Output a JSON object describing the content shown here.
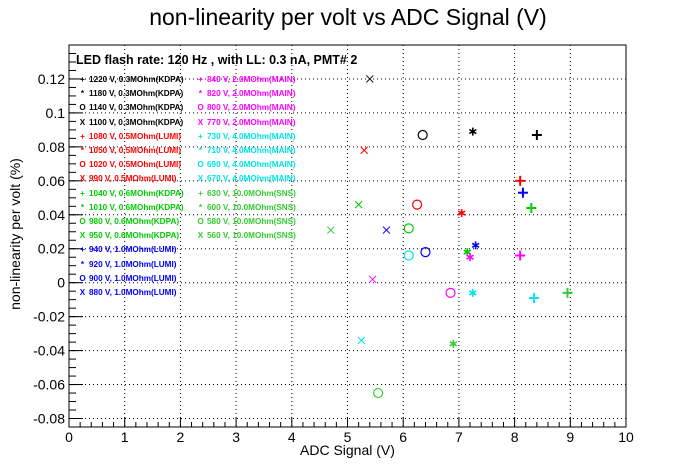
{
  "chart_data": {
    "type": "scatter",
    "title": "non-linearity per volt vs ADC Signal (V)",
    "subtitle": "LED flash rate: 120 Hz , with LL: 0.3 nA, PMT# 2",
    "xlabel": "ADC Signal (V)",
    "ylabel": "non-linearity per volt (%)",
    "xlim": [
      0,
      10
    ],
    "ylim": [
      -0.085,
      0.14
    ],
    "xticks": [
      "0",
      "1",
      "2",
      "3",
      "4",
      "5",
      "6",
      "7",
      "8",
      "9",
      "10"
    ],
    "yticks": [
      "-0.08",
      "-0.06",
      "-0.04",
      "-0.02",
      "0",
      "0.02",
      "0.04",
      "0.06",
      "0.08",
      "0.1",
      "0.12"
    ],
    "ytick_values": [
      -0.08,
      -0.06,
      -0.04,
      -0.02,
      0,
      0.02,
      0.04,
      0.06,
      0.08,
      0.1,
      0.12
    ],
    "grid": true,
    "legend_position": "top-left",
    "series": [
      {
        "name": "1220 V, 0.3MOhm(KDPA)",
        "marker": "plus",
        "color": "#000000",
        "points": [
          [
            8.4,
            0.087
          ]
        ]
      },
      {
        "name": "1180 V, 0.3MOhm(KDPA)",
        "marker": "star",
        "color": "#000000",
        "points": [
          [
            7.25,
            0.089
          ]
        ]
      },
      {
        "name": "1140 V, 0.3MOhm(KDPA)",
        "marker": "circle",
        "color": "#000000",
        "points": [
          [
            6.35,
            0.087
          ]
        ]
      },
      {
        "name": "1100 V, 0.3MOhm(KDPA)",
        "marker": "x",
        "color": "#000000",
        "points": [
          [
            5.4,
            0.12
          ]
        ]
      },
      {
        "name": "1080 V, 0.5MOhm(LUMI)",
        "marker": "plus",
        "color": "#ff0000",
        "points": [
          [
            8.1,
            0.06
          ]
        ]
      },
      {
        "name": "1050 V, 0.5MOhm(LUMI)",
        "marker": "star",
        "color": "#ff0000",
        "points": [
          [
            7.05,
            0.041
          ]
        ]
      },
      {
        "name": "1020 V, 0.5MOhm(LUMI)",
        "marker": "circle",
        "color": "#ff0000",
        "points": [
          [
            6.25,
            0.046
          ]
        ]
      },
      {
        "name": "990 V, 0.5MOhm(LUMI)",
        "marker": "x",
        "color": "#ff0000",
        "points": [
          [
            5.3,
            0.078
          ]
        ]
      },
      {
        "name": "1040 V, 0.6MOhm(KDPA)",
        "marker": "plus",
        "color": "#00cc00",
        "points": [
          [
            8.3,
            0.044
          ]
        ]
      },
      {
        "name": "1010 V, 0.6MOhm(KDPA)",
        "marker": "star",
        "color": "#00cc00",
        "points": [
          [
            7.15,
            0.018
          ]
        ]
      },
      {
        "name": "980 V, 0.6MOhm(KDPA)",
        "marker": "circle",
        "color": "#00cc00",
        "points": [
          [
            6.1,
            0.032
          ]
        ]
      },
      {
        "name": "950 V, 0.6MOhm(KDPA)",
        "marker": "x",
        "color": "#00cc00",
        "points": [
          [
            5.2,
            0.046
          ]
        ]
      },
      {
        "name": "940 V, 1.0MOhm(LUMI)",
        "marker": "plus",
        "color": "#0000ff",
        "points": [
          [
            8.15,
            0.053
          ]
        ]
      },
      {
        "name": "920 V, 1.0MOhm(LUMI)",
        "marker": "star",
        "color": "#0000ff",
        "points": [
          [
            7.3,
            0.022
          ]
        ]
      },
      {
        "name": "900 V, 1.0MOhm(LUMI)",
        "marker": "circle",
        "color": "#0000ff",
        "points": [
          [
            6.4,
            0.018
          ]
        ]
      },
      {
        "name": "880 V, 1.0MOhm(LUMI)",
        "marker": "x",
        "color": "#0000ff",
        "points": [
          [
            5.7,
            0.031
          ]
        ]
      },
      {
        "name": "840 V, 2.0MOhm(MAIN)",
        "marker": "plus",
        "color": "#ff00ff",
        "points": [
          [
            8.1,
            0.016
          ]
        ]
      },
      {
        "name": "820 V, 2.0MOhm(MAIN)",
        "marker": "star",
        "color": "#ff00ff",
        "points": [
          [
            7.2,
            0.015
          ]
        ]
      },
      {
        "name": "800 V, 2.0MOhm(MAIN)",
        "marker": "circle",
        "color": "#ff00ff",
        "points": [
          [
            6.85,
            -0.006
          ]
        ]
      },
      {
        "name": "770 V, 2.0MOhm(MAIN)",
        "marker": "x",
        "color": "#ff00ff",
        "points": [
          [
            5.45,
            0.002
          ]
        ]
      },
      {
        "name": "730 V, 4.0MOhm(MAIN)",
        "marker": "plus",
        "color": "#00e5e5",
        "points": [
          [
            8.35,
            -0.009
          ]
        ]
      },
      {
        "name": "710 V, 4.0MOhm(MAIN)",
        "marker": "star",
        "color": "#00e5e5",
        "points": [
          [
            7.25,
            -0.006
          ]
        ]
      },
      {
        "name": "690 V, 4.0MOhm(MAIN)",
        "marker": "circle",
        "color": "#00e5e5",
        "points": [
          [
            6.1,
            0.016
          ]
        ]
      },
      {
        "name": "670 V, 4.0MOhm(MAIN)",
        "marker": "x",
        "color": "#00e5e5",
        "points": [
          [
            5.25,
            -0.034
          ]
        ]
      },
      {
        "name": "630 V, 10.0MOhm(SNS)",
        "marker": "plus",
        "color": "#33cc33",
        "points": [
          [
            8.95,
            -0.006
          ]
        ]
      },
      {
        "name": "600 V, 10.0MOhm(SNS)",
        "marker": "star",
        "color": "#33cc33",
        "points": [
          [
            6.9,
            -0.036
          ]
        ]
      },
      {
        "name": "580 V, 10.0MOhm(SNS)",
        "marker": "circle",
        "color": "#33cc33",
        "points": [
          [
            5.55,
            -0.065
          ]
        ]
      },
      {
        "name": "560 V, 10.0MOhm(SNS)",
        "marker": "x",
        "color": "#33cc33",
        "points": [
          [
            4.7,
            0.031
          ]
        ]
      }
    ],
    "legend_columns": [
      [
        {
          "symbol": "+",
          "label": "1220 V, 0.3MOhm(KDPA)",
          "color": "#000000"
        },
        {
          "symbol": "*",
          "label": "1180 V, 0.3MOhm(KDPA)",
          "color": "#000000"
        },
        {
          "symbol": "O",
          "label": "1140 V, 0.3MOhm(KDPA)",
          "color": "#000000"
        },
        {
          "symbol": "X",
          "label": "1100 V, 0.3MOhm(KDPA)",
          "color": "#000000"
        },
        {
          "symbol": "+",
          "label": "1080 V, 0.5MOhm(LUMI)",
          "color": "#ff0000"
        },
        {
          "symbol": "*",
          "label": "1050 V, 0.5MOhm(LUMI)",
          "color": "#ff0000"
        },
        {
          "symbol": "O",
          "label": "1020 V, 0.5MOhm(LUMI)",
          "color": "#ff0000"
        },
        {
          "symbol": "X",
          "label": "990 V, 0.5MOhm(LUMI)",
          "color": "#ff0000"
        },
        {
          "symbol": "+",
          "label": "1040 V, 0.6MOhm(KDPA)",
          "color": "#00cc00"
        },
        {
          "symbol": "*",
          "label": "1010 V, 0.6MOhm(KDPA)",
          "color": "#00cc00"
        },
        {
          "symbol": "O",
          "label": "980 V, 0.6MOhm(KDPA)",
          "color": "#00cc00"
        },
        {
          "symbol": "X",
          "label": "950 V, 0.6MOhm(KDPA)",
          "color": "#00cc00"
        },
        {
          "symbol": "+",
          "label": "940 V, 1.0MOhm(LUMI)",
          "color": "#0000ff"
        },
        {
          "symbol": "*",
          "label": "920 V, 1.0MOhm(LUMI)",
          "color": "#0000ff"
        },
        {
          "symbol": "O",
          "label": "900 V, 1.0MOhm(LUMI)",
          "color": "#0000ff"
        },
        {
          "symbol": "X",
          "label": "880 V, 1.0MOhm(LUMI)",
          "color": "#0000ff"
        }
      ],
      [
        {
          "symbol": "+",
          "label": "840 V, 2.0MOhm(MAIN)",
          "color": "#ff00ff"
        },
        {
          "symbol": "*",
          "label": "820 V, 2.0MOhm(MAIN)",
          "color": "#ff00ff"
        },
        {
          "symbol": "O",
          "label": "800 V, 2.0MOhm(MAIN)",
          "color": "#ff00ff"
        },
        {
          "symbol": "X",
          "label": "770 V, 2.0MOhm(MAIN)",
          "color": "#ff00ff"
        },
        {
          "symbol": "+",
          "label": "730 V, 4.0MOhm(MAIN)",
          "color": "#00e5e5"
        },
        {
          "symbol": "*",
          "label": "710 V, 4.0MOhm(MAIN)",
          "color": "#00e5e5"
        },
        {
          "symbol": "O",
          "label": "690 V, 4.0MOhm(MAIN)",
          "color": "#00e5e5"
        },
        {
          "symbol": "X",
          "label": "670 V, 4.0MOhm(MAIN)",
          "color": "#00e5e5"
        },
        {
          "symbol": "+",
          "label": "630 V, 10.0MOhm(SNS)",
          "color": "#33cc33"
        },
        {
          "symbol": "*",
          "label": "600 V, 10.0MOhm(SNS)",
          "color": "#33cc33"
        },
        {
          "symbol": "O",
          "label": "580 V, 10.0MOhm(SNS)",
          "color": "#33cc33"
        },
        {
          "symbol": "X",
          "label": "560 V, 10.0MOhm(SNS)",
          "color": "#33cc33"
        }
      ]
    ]
  }
}
